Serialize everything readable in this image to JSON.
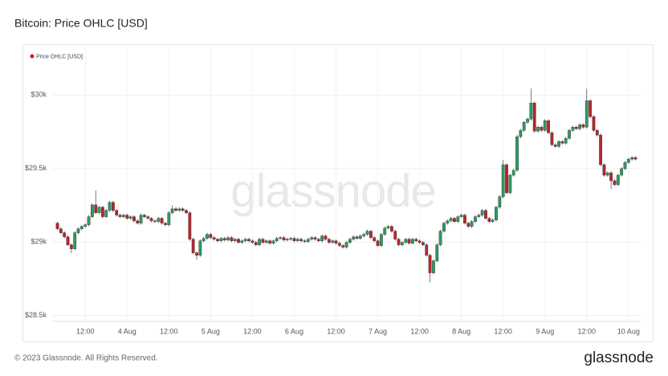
{
  "chart_data": {
    "type": "candlestick",
    "title": "Bitcoin: Price OHLC [USD]",
    "watermark": "glassnode",
    "grid": true,
    "legend": "top-left",
    "xlim": [
      2.5,
      171.5
    ],
    "ylim": [
      28460,
      30330
    ],
    "xticks": [
      {
        "value": 12,
        "label": "12:00"
      },
      {
        "value": 24,
        "label": "4 Aug"
      },
      {
        "value": 36,
        "label": "12:00"
      },
      {
        "value": 48,
        "label": "5 Aug"
      },
      {
        "value": 60,
        "label": "12:00"
      },
      {
        "value": 72,
        "label": "6 Aug"
      },
      {
        "value": 84,
        "label": "12:00"
      },
      {
        "value": 96,
        "label": "7 Aug"
      },
      {
        "value": 108,
        "label": "12:00"
      },
      {
        "value": 120,
        "label": "8 Aug"
      },
      {
        "value": 132,
        "label": "12:00"
      },
      {
        "value": 144,
        "label": "9 Aug"
      },
      {
        "value": 156,
        "label": "12:00"
      },
      {
        "value": 168,
        "label": "10 Aug"
      }
    ],
    "yticks": [
      {
        "value": 28500,
        "label": "$28.5k"
      },
      {
        "value": 29000,
        "label": "$29k"
      },
      {
        "value": 29500,
        "label": "$29.5k"
      },
      {
        "value": 30000,
        "label": "$30k"
      }
    ],
    "x": [
      4,
      5,
      6,
      7,
      8,
      9,
      10,
      11,
      12,
      13,
      14,
      15,
      16,
      17,
      18,
      19,
      20,
      21,
      22,
      23,
      24,
      25,
      26,
      27,
      28,
      29,
      30,
      31,
      32,
      33,
      34,
      35,
      36,
      37,
      38,
      39,
      40,
      41,
      42,
      43,
      44,
      45,
      46,
      47,
      48,
      49,
      50,
      51,
      52,
      53,
      54,
      55,
      56,
      57,
      58,
      59,
      60,
      61,
      62,
      63,
      64,
      65,
      66,
      67,
      68,
      69,
      70,
      71,
      72,
      73,
      74,
      75,
      76,
      77,
      78,
      79,
      80,
      81,
      82,
      83,
      84,
      85,
      86,
      87,
      88,
      89,
      90,
      91,
      92,
      93,
      94,
      95,
      96,
      97,
      98,
      99,
      100,
      101,
      102,
      103,
      104,
      105,
      106,
      107,
      108,
      109,
      110,
      111,
      112,
      113,
      114,
      115,
      116,
      117,
      118,
      119,
      120,
      121,
      122,
      123,
      124,
      125,
      126,
      127,
      128,
      129,
      130,
      131,
      132,
      133,
      134,
      135,
      136,
      137,
      138,
      139,
      140,
      141,
      142,
      143,
      144,
      145,
      146,
      147,
      148,
      149,
      150,
      151,
      152,
      153,
      154,
      155,
      156,
      157,
      158,
      159,
      160,
      161,
      162,
      163,
      164,
      165,
      166,
      167,
      168,
      169,
      170
    ],
    "series": [
      {
        "name": "Price OHLC [USD]",
        "color": "#d01f1f",
        "up_color": "#2f9a63",
        "down_color": "#b8262c",
        "open": [
          29128,
          29090,
          29063,
          29035,
          28981,
          28954,
          29063,
          29090,
          29106,
          29117,
          29172,
          29253,
          29199,
          29237,
          29172,
          29215,
          29270,
          29215,
          29183,
          29172,
          29183,
          29161,
          29172,
          29144,
          29128,
          29183,
          29172,
          29161,
          29144,
          29139,
          29161,
          29128,
          29117,
          29199,
          29226,
          29215,
          29226,
          29215,
          29199,
          29019,
          28926,
          28910,
          29008,
          29025,
          29052,
          29030,
          29019,
          29008,
          29025,
          29014,
          29030,
          29008,
          29019,
          28997,
          29008,
          29019,
          29008,
          28997,
          28981,
          29019,
          28997,
          29008,
          28992,
          29008,
          29025,
          29030,
          29014,
          29019,
          29025,
          29008,
          29019,
          29008,
          29003,
          29019,
          29030,
          29019,
          29008,
          29041,
          29019,
          28997,
          29008,
          28992,
          28976,
          28965,
          28997,
          29019,
          29035,
          29025,
          29041,
          29052,
          29074,
          29030,
          29008,
          28976,
          29052,
          29095,
          29106,
          29074,
          29019,
          28981,
          28997,
          29019,
          28992,
          29019,
          29008,
          28997,
          28981,
          28910,
          28790,
          28872,
          28981,
          29074,
          29128,
          29144,
          29161,
          29139,
          29172,
          29183,
          29128,
          29106,
          29139,
          29172,
          29183,
          29215,
          29161,
          29139,
          29150,
          29237,
          29308,
          29526,
          29335,
          29455,
          29488,
          29717,
          29760,
          29815,
          29837,
          29946,
          29755,
          29782,
          29760,
          29826,
          29744,
          29662,
          29651,
          29684,
          29673,
          29706,
          29760,
          29782,
          29771,
          29798,
          29782,
          29962,
          29853,
          29760,
          29728,
          29526,
          29455,
          29471,
          29417,
          29390,
          29455,
          29499,
          29542,
          29564,
          29575
        ],
        "high": [
          29138,
          29100,
          29073,
          29045,
          28991,
          29073,
          29100,
          29116,
          29127,
          29182,
          29263,
          29350,
          29247,
          29247,
          29225,
          29280,
          29280,
          29225,
          29193,
          29193,
          29193,
          29182,
          29182,
          29154,
          29193,
          29193,
          29182,
          29171,
          29154,
          29171,
          29171,
          29138,
          29209,
          29250,
          29236,
          29236,
          29236,
          29225,
          29209,
          29029,
          28936,
          29018,
          29035,
          29062,
          29062,
          29040,
          29029,
          29035,
          29035,
          29040,
          29040,
          29029,
          29029,
          29018,
          29029,
          29029,
          29018,
          29007,
          29029,
          29029,
          29018,
          29018,
          29018,
          29035,
          29040,
          29040,
          29029,
          29035,
          29035,
          29029,
          29029,
          29018,
          29029,
          29040,
          29040,
          29029,
          29051,
          29051,
          29029,
          29018,
          29018,
          29002,
          28986,
          29007,
          29029,
          29045,
          29045,
          29051,
          29062,
          29084,
          29084,
          29040,
          29018,
          29062,
          29105,
          29116,
          29116,
          29084,
          29029,
          29007,
          29029,
          29029,
          29029,
          29029,
          29018,
          29007,
          28991,
          28920,
          28882,
          28991,
          29084,
          29138,
          29154,
          29171,
          29171,
          29182,
          29193,
          29193,
          29138,
          29149,
          29182,
          29193,
          29225,
          29225,
          29171,
          29160,
          29247,
          29318,
          29560,
          29536,
          29465,
          29498,
          29730,
          29770,
          29825,
          29847,
          30044,
          29956,
          29792,
          29792,
          29836,
          29836,
          29754,
          29672,
          29694,
          29694,
          29716,
          29770,
          29792,
          29792,
          29808,
          29808,
          30044,
          29972,
          29863,
          29770,
          29738,
          29536,
          29481,
          29481,
          29427,
          29465,
          29509,
          29552,
          29574,
          29585,
          29585
        ],
        "low": [
          29080,
          29053,
          29025,
          28971,
          28925,
          28944,
          29053,
          29080,
          29096,
          29107,
          29162,
          29189,
          29189,
          29162,
          29162,
          29205,
          29205,
          29173,
          29162,
          29162,
          29151,
          29151,
          29134,
          29118,
          29118,
          29162,
          29151,
          29134,
          29129,
          29129,
          29118,
          29107,
          29107,
          29189,
          29205,
          29205,
          29205,
          29189,
          29009,
          28916,
          28880,
          28900,
          28998,
          29015,
          29020,
          29009,
          28998,
          28998,
          29004,
          29004,
          28998,
          28998,
          28987,
          28987,
          28998,
          28998,
          28987,
          28971,
          28971,
          28987,
          28987,
          28982,
          28982,
          28998,
          29015,
          29004,
          29004,
          29009,
          28998,
          28998,
          28998,
          28993,
          28993,
          29009,
          29009,
          28998,
          28998,
          29009,
          28987,
          28987,
          28982,
          28966,
          28955,
          28955,
          28987,
          29009,
          29015,
          29015,
          29031,
          29042,
          29020,
          28998,
          28966,
          28966,
          29042,
          29085,
          29064,
          29009,
          28971,
          28971,
          28987,
          28982,
          28982,
          28998,
          28987,
          28971,
          28900,
          28725,
          28780,
          28862,
          28971,
          29064,
          29118,
          29134,
          29129,
          29129,
          29162,
          29118,
          29096,
          29096,
          29129,
          29162,
          29173,
          29151,
          29129,
          29129,
          29140,
          29227,
          29298,
          29325,
          29325,
          29445,
          29478,
          29707,
          29750,
          29805,
          29827,
          29745,
          29745,
          29750,
          29750,
          29734,
          29652,
          29641,
          29641,
          29663,
          29663,
          29696,
          29750,
          29761,
          29761,
          29772,
          29772,
          29843,
          29750,
          29718,
          29516,
          29445,
          29445,
          29360,
          29380,
          29380,
          29445,
          29489,
          29532,
          29554,
          29554
        ],
        "close": [
          29090,
          29063,
          29035,
          28981,
          28954,
          29063,
          29090,
          29106,
          29117,
          29172,
          29253,
          29199,
          29237,
          29172,
          29215,
          29270,
          29215,
          29183,
          29172,
          29183,
          29161,
          29172,
          29144,
          29128,
          29183,
          29172,
          29161,
          29144,
          29139,
          29161,
          29128,
          29117,
          29199,
          29226,
          29215,
          29226,
          29215,
          29199,
          29019,
          28926,
          28910,
          29008,
          29025,
          29052,
          29030,
          29019,
          29008,
          29025,
          29014,
          29030,
          29008,
          29019,
          28997,
          29008,
          29019,
          29008,
          28997,
          28981,
          29019,
          28997,
          29008,
          28992,
          29008,
          29025,
          29030,
          29014,
          29019,
          29025,
          29008,
          29019,
          29008,
          29003,
          29019,
          29030,
          29019,
          29008,
          29041,
          29019,
          28997,
          29008,
          28992,
          28976,
          28965,
          28997,
          29019,
          29035,
          29025,
          29041,
          29052,
          29074,
          29030,
          29008,
          28976,
          29052,
          29095,
          29106,
          29074,
          29019,
          28981,
          28997,
          29019,
          28992,
          29019,
          29008,
          28997,
          28981,
          28910,
          28790,
          28872,
          28981,
          29074,
          29128,
          29144,
          29161,
          29139,
          29172,
          29183,
          29128,
          29106,
          29139,
          29172,
          29183,
          29215,
          29161,
          29139,
          29150,
          29237,
          29308,
          29526,
          29335,
          29455,
          29488,
          29717,
          29760,
          29815,
          29837,
          29946,
          29755,
          29782,
          29760,
          29826,
          29744,
          29662,
          29651,
          29684,
          29673,
          29706,
          29760,
          29782,
          29771,
          29798,
          29782,
          29962,
          29853,
          29760,
          29728,
          29526,
          29455,
          29471,
          29417,
          29390,
          29455,
          29499,
          29542,
          29564,
          29575,
          29564
        ]
      }
    ]
  },
  "footer": {
    "copyright": "© 2023 Glassnode. All Rights Reserved.",
    "logo": "glassnode"
  }
}
